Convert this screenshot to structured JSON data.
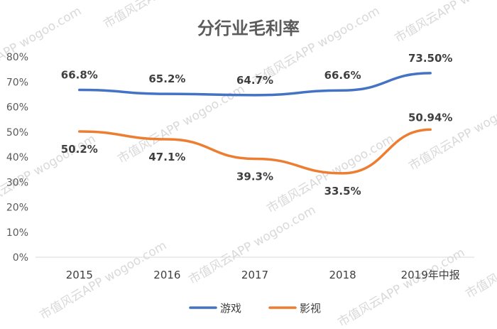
{
  "watermark": {
    "text": "市值风云APP wogoo.com"
  },
  "colors": {
    "游戏": "#4472c4",
    "影视": "#ed7d31",
    "grid": "#d9d9d9"
  },
  "chart_data": {
    "type": "line",
    "title": "分行业毛利率",
    "xlabel": "",
    "ylabel": "",
    "categories": [
      "2015",
      "2016",
      "2017",
      "2018",
      "2019年中报"
    ],
    "ylim": [
      0,
      80
    ],
    "yticks": [
      "0%",
      "10%",
      "20%",
      "30%",
      "40%",
      "50%",
      "60%",
      "70%",
      "80%"
    ],
    "grid": false,
    "legend_position": "bottom",
    "series": [
      {
        "name": "游戏",
        "values": [
          66.8,
          65.2,
          64.7,
          66.6,
          73.5
        ],
        "labels": [
          "66.8%",
          "65.2%",
          "64.7%",
          "66.6%",
          "73.50%"
        ]
      },
      {
        "name": "影视",
        "values": [
          50.2,
          47.1,
          39.3,
          33.5,
          50.94
        ],
        "labels": [
          "50.2%",
          "47.1%",
          "39.3%",
          "33.5%",
          "50.94%"
        ]
      }
    ]
  }
}
